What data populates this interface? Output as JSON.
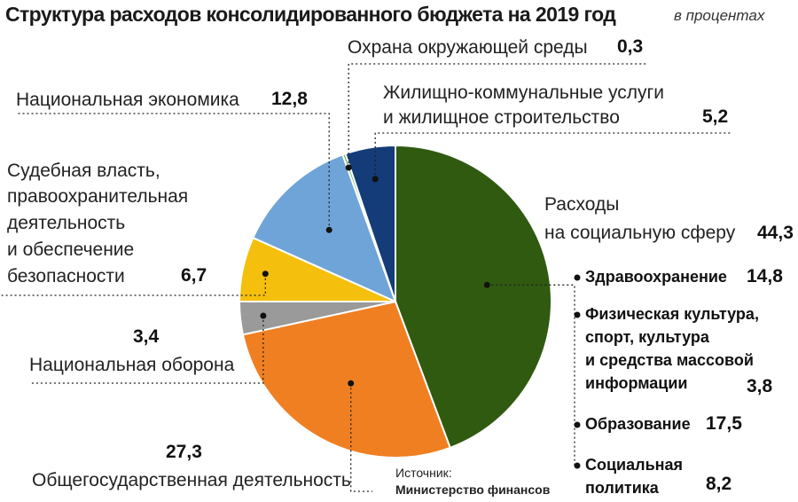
{
  "chart_data": {
    "type": "pie",
    "title": "Структура расходов консолидированного бюджета на 2019 год",
    "unit": "в процентах",
    "slices": [
      {
        "label": "Расходы на социальную сферу",
        "value": 44.3,
        "value_text": "44,3",
        "color": "#2f5a10"
      },
      {
        "label": "Общегосударственная деятельность",
        "value": 27.3,
        "value_text": "27,3",
        "color": "#f07f22"
      },
      {
        "label": "Национальная оборона",
        "value": 3.4,
        "value_text": "3,4",
        "color": "#9a9a9a"
      },
      {
        "label": "Судебная власть, правоохранительная деятельность и обеспечение безопасности",
        "value": 6.7,
        "value_text": "6,7",
        "color": "#f5bf0e"
      },
      {
        "label": "Национальная экономика",
        "value": 12.8,
        "value_text": "12,8",
        "color": "#6fa4d8"
      },
      {
        "label": "Охрана окружающей среды",
        "value": 0.3,
        "value_text": "0,3",
        "color": "#6ab042"
      },
      {
        "label": "Жилищно-коммунальные услуги и жилищное строительство",
        "value": 5.2,
        "value_text": "5,2",
        "color": "#133c78"
      }
    ],
    "social_breakdown": [
      {
        "label": "Здравоохранение",
        "value": 14.8,
        "value_text": "14,8"
      },
      {
        "label": "Физическая культура, спорт, культура и средства массовой информации",
        "value": 3.8,
        "value_text": "3,8"
      },
      {
        "label": "Образование",
        "value": 17.5,
        "value_text": "17,5"
      },
      {
        "label": "Социальная политика",
        "value": 8.2,
        "value_text": "8,2"
      }
    ]
  },
  "labels": {
    "env": "Охрана окружающей среды",
    "housing_1": "Жилищно-коммунальные услуги",
    "housing_2": "и жилищное строительство",
    "economy": "Национальная экономика",
    "judicial_1": "Судебная власть,",
    "judicial_2": "правоохранительная",
    "judicial_3": "деятельность",
    "judicial_4": "и обеспечение",
    "judicial_5": "безопасности",
    "social_1": "Расходы",
    "social_2": "на социальную сферу",
    "defense": "Национальная оборона",
    "general": "Общегосударственная деятельность",
    "health": "Здравоохранение",
    "sport_1": "Физическая культура,",
    "sport_2": "спорт, культура",
    "sport_3": "и средства массовой",
    "sport_4": "информации",
    "education": "Образование",
    "socpol_1": "Социальная",
    "socpol_2": "политика"
  },
  "source": {
    "label": "Источник:",
    "name": "Министерство финансов"
  }
}
